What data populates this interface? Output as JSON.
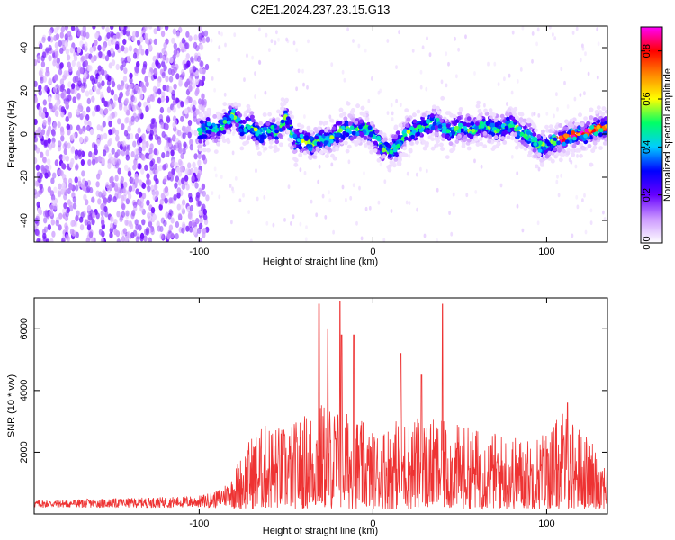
{
  "chart_data": [
    {
      "type": "heatmap",
      "title": "C2E1.2024.237.23.15.G13",
      "xlabel": "Height of straight line (km)",
      "ylabel": "Frequency (Hz)",
      "xlim": [
        -195,
        135
      ],
      "ylim": [
        -50,
        50
      ],
      "xticks": [
        -100,
        0,
        100
      ],
      "yticks": [
        -40,
        -20,
        0,
        20,
        40
      ],
      "grid": false,
      "colorbar": {
        "label": "Normalized spectral amplitude",
        "range": [
          0,
          0.9
        ],
        "ticks": [
          0.0,
          0.2,
          0.4,
          0.6,
          0.8
        ],
        "colors": [
          "#ffffff",
          "#cc99ff",
          "#6600ff",
          "#0000ff",
          "#00ccff",
          "#00ff66",
          "#ffff00",
          "#ff8800",
          "#ff0000",
          "#ff00ff"
        ]
      },
      "ridge": {
        "x": [
          -100,
          -95,
          -90,
          -85,
          -80,
          -75,
          -70,
          -65,
          -60,
          -55,
          -50,
          -45,
          -40,
          -35,
          -30,
          -25,
          -20,
          -15,
          -10,
          -5,
          0,
          5,
          10,
          15,
          20,
          25,
          30,
          35,
          40,
          45,
          50,
          55,
          60,
          65,
          70,
          75,
          80,
          85,
          90,
          95,
          100,
          105,
          110,
          115,
          120,
          125,
          130
        ],
        "y": [
          1,
          3,
          2,
          5,
          9,
          3,
          4,
          -1,
          2,
          1,
          8,
          -3,
          -3,
          -5,
          -2,
          -3,
          1,
          2,
          2,
          3,
          0,
          -6,
          -8,
          -4,
          1,
          2,
          3,
          6,
          3,
          1,
          3,
          2,
          3,
          4,
          2,
          3,
          5,
          1,
          -1,
          -5,
          -6,
          -3,
          -2,
          0,
          0,
          1,
          3
        ]
      }
    },
    {
      "type": "line",
      "title": "",
      "xlabel": "Height of straight line (km)",
      "ylabel": "SNR (10 * v/v)",
      "xlim": [
        -195,
        135
      ],
      "ylim": [
        0,
        7000
      ],
      "xticks": [
        -100,
        0,
        100
      ],
      "yticks": [
        2000,
        4000,
        6000
      ],
      "grid": false,
      "color": "#ee3333",
      "envelope": {
        "x": [
          -195,
          -150,
          -120,
          -100,
          -90,
          -80,
          -70,
          -60,
          -50,
          -40,
          -30,
          -20,
          -10,
          0,
          10,
          20,
          30,
          40,
          50,
          60,
          70,
          80,
          90,
          100,
          110,
          120,
          130
        ],
        "y": [
          400,
          450,
          500,
          550,
          700,
          1200,
          2200,
          2600,
          2400,
          2800,
          3200,
          3000,
          2800,
          2300,
          2600,
          2800,
          2700,
          2600,
          2500,
          2400,
          2300,
          2200,
          2100,
          2400,
          2900,
          2400,
          1700
        ]
      },
      "spikes": [
        {
          "x": -31,
          "y": 6800
        },
        {
          "x": -26,
          "y": 6000
        },
        {
          "x": -19,
          "y": 6900
        },
        {
          "x": -18,
          "y": 5800
        },
        {
          "x": -11,
          "y": 5800
        },
        {
          "x": 16,
          "y": 5200
        },
        {
          "x": 40,
          "y": 6800
        },
        {
          "x": 28,
          "y": 4500
        },
        {
          "x": 112,
          "y": 3600
        }
      ]
    }
  ]
}
